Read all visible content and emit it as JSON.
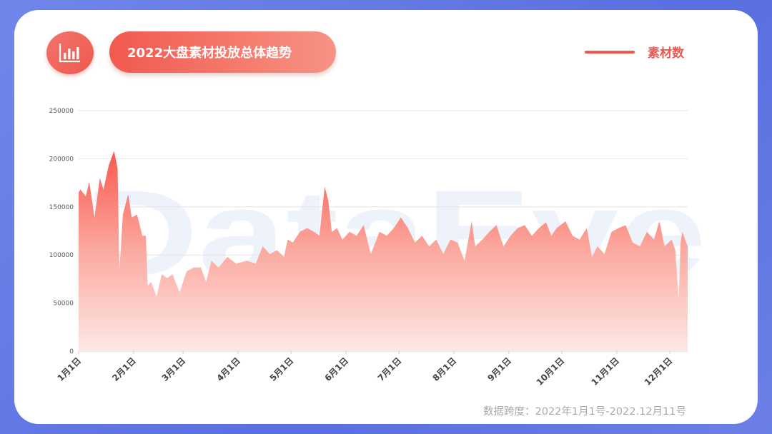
{
  "header": {
    "title": "2022大盘素材投放总体趋势",
    "icon": "bar-chart-icon"
  },
  "watermark": "DataEye",
  "footnote": "数据跨度：2022年1月1号-2022.12月11号",
  "colors": {
    "accent": "#f0574e",
    "area_top": "#f9584e",
    "area_bottom": "#fde8e6",
    "background": "#5f74e4"
  },
  "chart_data": {
    "type": "area",
    "title": "2022大盘素材投放总体趋势",
    "xlabel": "",
    "ylabel": "",
    "ylim": [
      0,
      250000
    ],
    "xlim": [
      "2022-01-01",
      "2022-12-11"
    ],
    "grid": true,
    "legend_position": "top-right",
    "yticks": [
      "0",
      "50000",
      "100000",
      "150000",
      "200000",
      "250000"
    ],
    "xticks": [
      {
        "date": "2022-01-01",
        "label": "1月1日"
      },
      {
        "date": "2022-02-01",
        "label": "2月1日"
      },
      {
        "date": "2022-03-01",
        "label": "3月1日"
      },
      {
        "date": "2022-04-01",
        "label": "4月1日"
      },
      {
        "date": "2022-05-01",
        "label": "5月1日"
      },
      {
        "date": "2022-06-01",
        "label": "6月1日"
      },
      {
        "date": "2022-07-01",
        "label": "7月1日"
      },
      {
        "date": "2022-08-01",
        "label": "8月1日"
      },
      {
        "date": "2022-09-01",
        "label": "9月1日"
      },
      {
        "date": "2022-10-01",
        "label": "10月1日"
      },
      {
        "date": "2022-11-01",
        "label": "11月1日"
      },
      {
        "date": "2022-12-01",
        "label": "12月1日"
      }
    ],
    "series": [
      {
        "name": "素材数",
        "points": [
          [
            "2022-01-01",
            165000
          ],
          [
            "2022-01-02",
            168000
          ],
          [
            "2022-01-05",
            161000
          ],
          [
            "2022-01-07",
            176000
          ],
          [
            "2022-01-10",
            139000
          ],
          [
            "2022-01-13",
            180000
          ],
          [
            "2022-01-15",
            168000
          ],
          [
            "2022-01-18",
            193000
          ],
          [
            "2022-01-21",
            208000
          ],
          [
            "2022-01-23",
            190000
          ],
          [
            "2022-01-24",
            83000
          ],
          [
            "2022-01-26",
            142000
          ],
          [
            "2022-01-29",
            163000
          ],
          [
            "2022-01-31",
            139000
          ],
          [
            "2022-02-03",
            142000
          ],
          [
            "2022-02-06",
            120000
          ],
          [
            "2022-02-08",
            120000
          ],
          [
            "2022-02-09",
            68000
          ],
          [
            "2022-02-11",
            72000
          ],
          [
            "2022-02-14",
            57000
          ],
          [
            "2022-02-17",
            80000
          ],
          [
            "2022-02-20",
            76000
          ],
          [
            "2022-02-23",
            80000
          ],
          [
            "2022-02-27",
            61000
          ],
          [
            "2022-03-03",
            83000
          ],
          [
            "2022-03-07",
            87000
          ],
          [
            "2022-03-11",
            87000
          ],
          [
            "2022-03-14",
            72000
          ],
          [
            "2022-03-17",
            94000
          ],
          [
            "2022-03-21",
            87000
          ],
          [
            "2022-03-26",
            98000
          ],
          [
            "2022-03-31",
            91000
          ],
          [
            "2022-04-06",
            94000
          ],
          [
            "2022-04-11",
            91000
          ],
          [
            "2022-04-15",
            109000
          ],
          [
            "2022-04-19",
            101000
          ],
          [
            "2022-04-23",
            105000
          ],
          [
            "2022-04-27",
            98000
          ],
          [
            "2022-04-29",
            116000
          ],
          [
            "2022-05-02",
            113000
          ],
          [
            "2022-05-06",
            124000
          ],
          [
            "2022-05-10",
            128000
          ],
          [
            "2022-05-14",
            124000
          ],
          [
            "2022-05-17",
            120000
          ],
          [
            "2022-05-20",
            171000
          ],
          [
            "2022-05-22",
            157000
          ],
          [
            "2022-05-24",
            124000
          ],
          [
            "2022-05-27",
            128000
          ],
          [
            "2022-05-30",
            116000
          ],
          [
            "2022-06-03",
            124000
          ],
          [
            "2022-06-07",
            120000
          ],
          [
            "2022-06-11",
            131000
          ],
          [
            "2022-06-15",
            101000
          ],
          [
            "2022-06-20",
            124000
          ],
          [
            "2022-06-24",
            120000
          ],
          [
            "2022-06-28",
            128000
          ],
          [
            "2022-07-02",
            139000
          ],
          [
            "2022-07-06",
            128000
          ],
          [
            "2022-07-10",
            113000
          ],
          [
            "2022-07-14",
            120000
          ],
          [
            "2022-07-18",
            109000
          ],
          [
            "2022-07-22",
            116000
          ],
          [
            "2022-07-26",
            101000
          ],
          [
            "2022-07-30",
            116000
          ],
          [
            "2022-08-03",
            113000
          ],
          [
            "2022-08-07",
            94000
          ],
          [
            "2022-08-11",
            135000
          ],
          [
            "2022-08-13",
            109000
          ],
          [
            "2022-08-17",
            116000
          ],
          [
            "2022-08-21",
            124000
          ],
          [
            "2022-08-25",
            131000
          ],
          [
            "2022-08-29",
            109000
          ],
          [
            "2022-09-02",
            120000
          ],
          [
            "2022-09-06",
            128000
          ],
          [
            "2022-09-10",
            131000
          ],
          [
            "2022-09-14",
            120000
          ],
          [
            "2022-09-18",
            128000
          ],
          [
            "2022-09-22",
            134000
          ],
          [
            "2022-09-25",
            120000
          ],
          [
            "2022-09-28",
            128000
          ],
          [
            "2022-10-03",
            135000
          ],
          [
            "2022-10-07",
            120000
          ],
          [
            "2022-10-11",
            116000
          ],
          [
            "2022-10-15",
            128000
          ],
          [
            "2022-10-18",
            98000
          ],
          [
            "2022-10-21",
            109000
          ],
          [
            "2022-10-25",
            101000
          ],
          [
            "2022-10-29",
            124000
          ],
          [
            "2022-11-02",
            128000
          ],
          [
            "2022-11-06",
            131000
          ],
          [
            "2022-11-10",
            113000
          ],
          [
            "2022-11-14",
            109000
          ],
          [
            "2022-11-18",
            124000
          ],
          [
            "2022-11-22",
            116000
          ],
          [
            "2022-11-25",
            135000
          ],
          [
            "2022-11-28",
            109000
          ],
          [
            "2022-12-02",
            116000
          ],
          [
            "2022-12-04",
            105000
          ],
          [
            "2022-12-06",
            53000
          ],
          [
            "2022-12-07",
            113000
          ],
          [
            "2022-12-08",
            124000
          ],
          [
            "2022-12-11",
            109000
          ]
        ]
      }
    ]
  }
}
